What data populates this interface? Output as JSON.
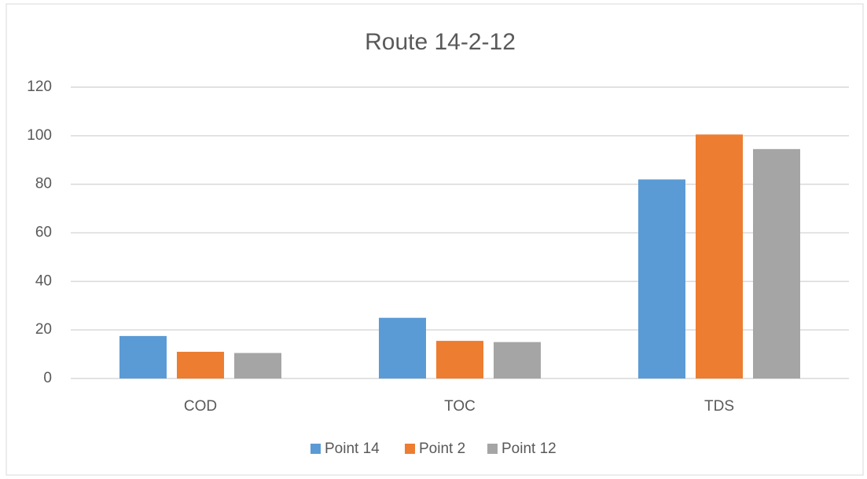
{
  "chart_data": {
    "type": "bar",
    "title": "Route 14-2-12",
    "categories": [
      "COD",
      "TOC",
      "TDS"
    ],
    "series": [
      {
        "name": "Point 14",
        "color": "#5b9bd5",
        "values": [
          17.5,
          25,
          82
        ]
      },
      {
        "name": "Point 2",
        "color": "#ed7d31",
        "values": [
          11,
          15.5,
          100.5
        ]
      },
      {
        "name": "Point 12",
        "color": "#a5a5a5",
        "values": [
          10.5,
          15,
          94.5
        ]
      }
    ],
    "ylim": [
      0,
      120
    ],
    "yticks": [
      0,
      20,
      40,
      60,
      80,
      100,
      120
    ],
    "grid": true,
    "legend": "bottom"
  }
}
